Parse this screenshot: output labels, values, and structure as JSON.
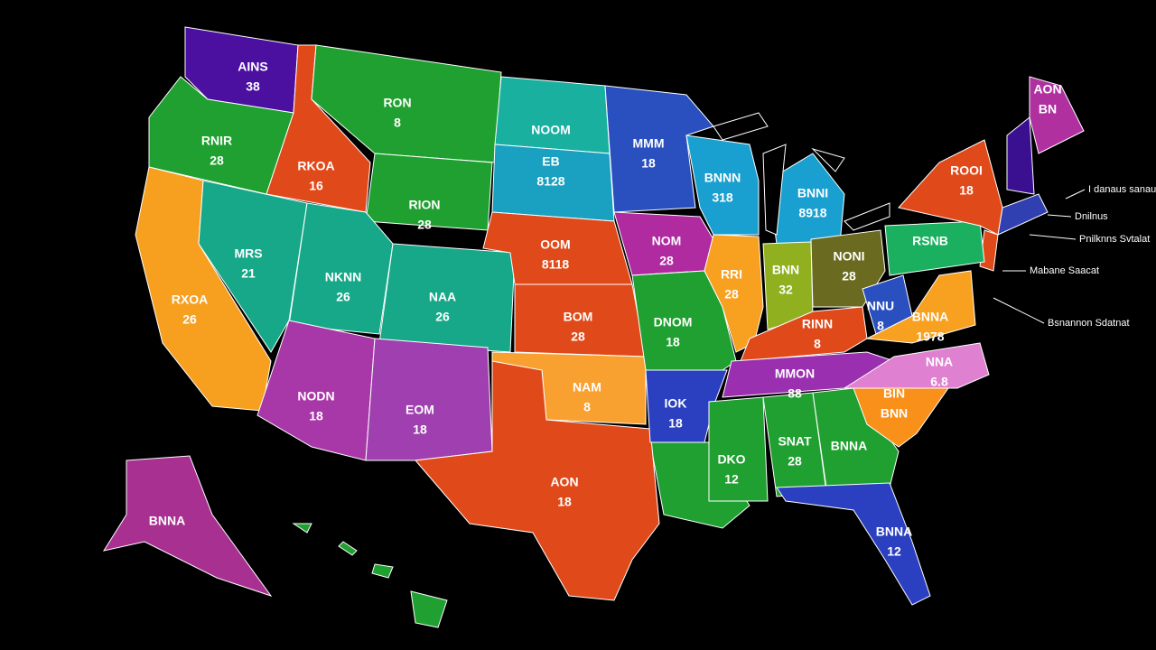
{
  "regions": [
    {
      "label": "AINS",
      "value": "38"
    },
    {
      "label": "RNIR",
      "value": "28"
    },
    {
      "label": "RXOA",
      "value": "26"
    },
    {
      "label": "MRS",
      "value": "21"
    },
    {
      "label": "RKOA",
      "value": "16"
    },
    {
      "label": "RON",
      "value": "8"
    },
    {
      "label": "RION",
      "value": "28"
    },
    {
      "label": "NKNN",
      "value": "26"
    },
    {
      "label": "NAA",
      "value": "26"
    },
    {
      "label": "NODN",
      "value": "18"
    },
    {
      "label": "EOM",
      "value": "18"
    },
    {
      "label": "NOOM"
    },
    {
      "label": "EB",
      "value": "8128"
    },
    {
      "label": "OOM",
      "value": "8118"
    },
    {
      "label": "BOM",
      "value": "28"
    },
    {
      "label": "NAM",
      "value": "8"
    },
    {
      "label": "AON",
      "value": "18"
    },
    {
      "label": "MMM",
      "value": "18"
    },
    {
      "label": "NOM",
      "value": "28"
    },
    {
      "label": "DNOM",
      "value": "18"
    },
    {
      "label": "IOK",
      "value": "18"
    },
    {
      "label": "DKO",
      "value": "12"
    },
    {
      "label": "SNAT",
      "value": "28"
    },
    {
      "label": "BNNA"
    },
    {
      "label": "BNNA",
      "value": "12"
    },
    {
      "label": "BNNN",
      "value": "318"
    },
    {
      "label": "BNNI",
      "value": "8918"
    },
    {
      "label": "RRI",
      "value": "28"
    },
    {
      "label": "BNN",
      "value": "32"
    },
    {
      "label": "NONI",
      "value": "28"
    },
    {
      "label": "RINN",
      "value": "8"
    },
    {
      "label": "MMON",
      "value": "88"
    },
    {
      "label": "NNU",
      "value": "8"
    },
    {
      "label": "BNNA",
      "value": "1978"
    },
    {
      "label": "NNA",
      "value": "6.8"
    },
    {
      "label": "BIN",
      "value": "BNN"
    },
    {
      "label": "RSNB"
    },
    {
      "label": "ROOI",
      "value": "18"
    },
    {
      "label": "AON",
      "value": "BN"
    },
    {
      "label": "BNNA"
    }
  ],
  "annotations": [
    "I danaus sanaull",
    "Dnilnus",
    "Pnilknns Svtalat",
    "Mabane Saacat",
    "Bsnannon Sdatnat"
  ]
}
